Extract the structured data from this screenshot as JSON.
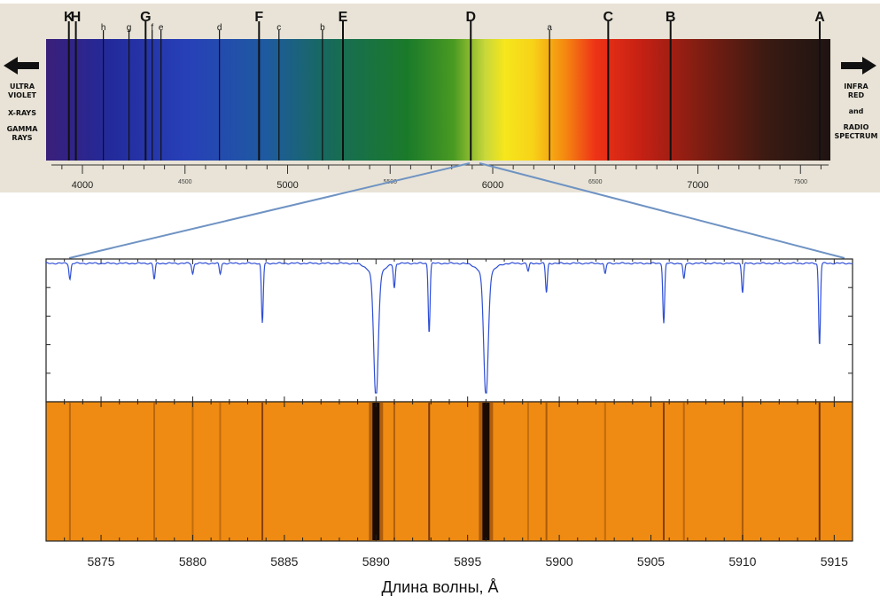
{
  "solar_spectrum": {
    "fraunhofer_lines": [
      {
        "label": "K",
        "wavelength": 3934,
        "weight": "strong"
      },
      {
        "label": "H",
        "wavelength": 3968,
        "weight": "strong"
      },
      {
        "label": "h",
        "wavelength": 4102,
        "weight": "small"
      },
      {
        "label": "g",
        "wavelength": 4227,
        "weight": "small"
      },
      {
        "label": "G",
        "wavelength": 4308,
        "weight": "strong"
      },
      {
        "label": "f",
        "wavelength": 4340,
        "weight": "small"
      },
      {
        "label": "e",
        "wavelength": 4383,
        "weight": "small"
      },
      {
        "label": "d",
        "wavelength": 4668,
        "weight": "small"
      },
      {
        "label": "F",
        "wavelength": 4861,
        "weight": "strong"
      },
      {
        "label": "c",
        "wavelength": 4958,
        "weight": "small"
      },
      {
        "label": "b",
        "wavelength": 5170,
        "weight": "small"
      },
      {
        "label": "E",
        "wavelength": 5270,
        "weight": "strong"
      },
      {
        "label": "D",
        "wavelength": 5893,
        "weight": "strong"
      },
      {
        "label": "a",
        "wavelength": 6277,
        "weight": "small"
      },
      {
        "label": "C",
        "wavelength": 6563,
        "weight": "strong"
      },
      {
        "label": "B",
        "wavelength": 6867,
        "weight": "strong"
      },
      {
        "label": "A",
        "wavelength": 7594,
        "weight": "strong"
      }
    ],
    "left_arrow_labels": [
      "ULTRA",
      "VIOLET",
      "X-RAYS",
      "GAMMA",
      "RAYS"
    ],
    "right_arrow_labels": [
      "INFRA",
      "RED",
      "and",
      "RADIO",
      "SPECTRUM"
    ],
    "axis_ticks": [
      "4000",
      "5000",
      "6000",
      "7000"
    ],
    "axis_minor_ticks": [
      "4500",
      "5500",
      "6500",
      "7500"
    ]
  },
  "chart_data": {
    "type": "line",
    "xlabel": "Длина волны, Å",
    "ylabel": "",
    "xlim": [
      5872,
      5916
    ],
    "ylim": [
      0,
      1
    ],
    "x_ticks": [
      "5875",
      "5880",
      "5885",
      "5890",
      "5895",
      "5900",
      "5905",
      "5910",
      "5915"
    ],
    "absorption_lines": [
      {
        "x": 5873.3,
        "depth": 0.12
      },
      {
        "x": 5877.9,
        "depth": 0.12
      },
      {
        "x": 5880.0,
        "depth": 0.08
      },
      {
        "x": 5881.5,
        "depth": 0.08
      },
      {
        "x": 5883.8,
        "depth": 0.45
      },
      {
        "x": 5890.0,
        "depth": 0.95
      },
      {
        "x": 5891.0,
        "depth": 0.18
      },
      {
        "x": 5892.9,
        "depth": 0.52
      },
      {
        "x": 5896.0,
        "depth": 0.93
      },
      {
        "x": 5898.3,
        "depth": 0.06
      },
      {
        "x": 5899.3,
        "depth": 0.22
      },
      {
        "x": 5902.5,
        "depth": 0.08
      },
      {
        "x": 5905.7,
        "depth": 0.45
      },
      {
        "x": 5906.8,
        "depth": 0.12
      },
      {
        "x": 5910.0,
        "depth": 0.22
      },
      {
        "x": 5914.2,
        "depth": 0.62
      }
    ],
    "colors": {
      "line": "#2f4fd6",
      "band": "#ef8b12",
      "connector": "#6f93c3"
    }
  }
}
